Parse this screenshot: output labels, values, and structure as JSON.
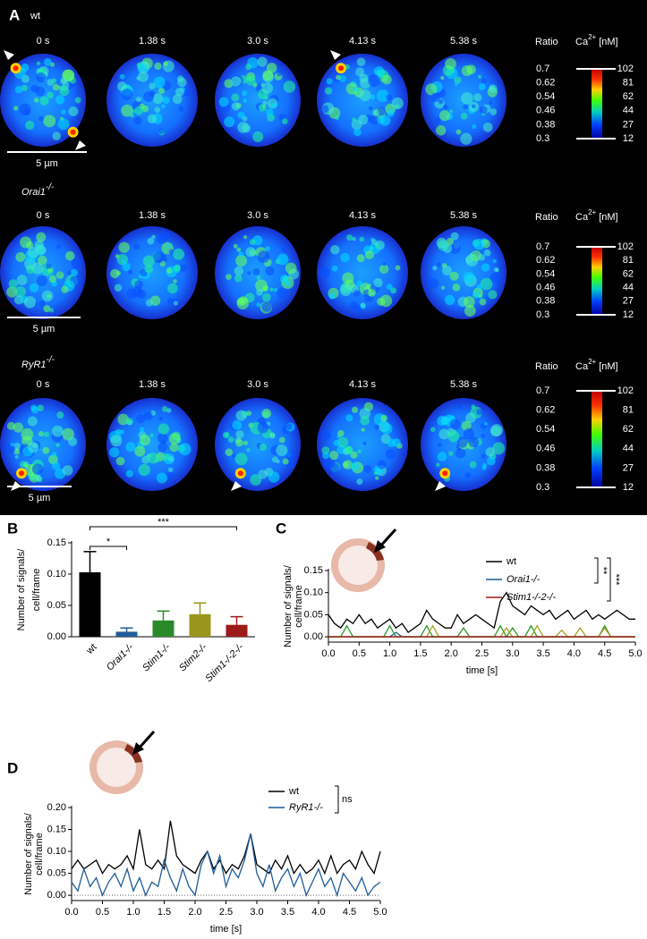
{
  "panel_a": {
    "label": "A",
    "rows": [
      {
        "genotype": "wt"
      },
      {
        "genotype": "Orai1",
        "superscript": "-/-"
      },
      {
        "genotype": "RyR1",
        "superscript": "-/-"
      }
    ],
    "times": [
      "0 s",
      "1.38 s",
      "3.0 s",
      "4.13 s",
      "5.38 s"
    ],
    "scale_bar": "5 µm",
    "colorbar": {
      "ratio_title": "Ratio",
      "ca_label": "Ca",
      "ca_sup": "2+",
      "ca_unit": "[nM]",
      "ratio_ticks": [
        0.7,
        0.62,
        0.54,
        0.46,
        0.38,
        0.3
      ],
      "ca_ticks": [
        102,
        81,
        62,
        44,
        27,
        12
      ]
    }
  },
  "chart_data": [
    {
      "type": "bar",
      "panel": "B",
      "ylabel": [
        "Number of signals/",
        "cell/frame"
      ],
      "categories": [
        "wt",
        "Orai1-/-",
        "Stim1-/-",
        "Stim2-/-",
        "Stim1-/-2-/-"
      ],
      "values": [
        0.103,
        0.008,
        0.026,
        0.036,
        0.019
      ],
      "errors": [
        0.033,
        0.006,
        0.015,
        0.018,
        0.013
      ],
      "colors": [
        "#000000",
        "#1f5c99",
        "#2a8a2a",
        "#9a961c",
        "#9c1a1a"
      ],
      "ylim": [
        0,
        0.15
      ],
      "yticks": [
        {
          "value": 0,
          "label": "0.00"
        },
        0.05,
        {
          "value": 0.1,
          "label": "0.10"
        },
        0.15
      ],
      "annotations": [
        "*",
        "***"
      ]
    },
    {
      "type": "line",
      "panel": "C",
      "ylabel": [
        "Number of signals/",
        "cell/frame"
      ],
      "xlabel": "time [s]",
      "x": [
        0,
        0.1,
        0.2,
        0.3,
        0.4,
        0.5,
        0.6,
        0.7,
        0.8,
        0.9,
        1,
        1.1,
        1.2,
        1.3,
        1.4,
        1.5,
        1.6,
        1.7,
        1.8,
        1.9,
        2,
        2.1,
        2.2,
        2.3,
        2.4,
        2.5,
        2.6,
        2.7,
        2.8,
        2.9,
        3,
        3.1,
        3.2,
        3.3,
        3.4,
        3.5,
        3.6,
        3.7,
        3.8,
        3.9,
        4,
        4.1,
        4.2,
        4.3,
        4.4,
        4.5,
        4.6,
        4.7,
        4.8,
        4.9,
        5
      ],
      "series": [
        {
          "name": "wt",
          "color": "#000000",
          "values": [
            0.05,
            0.03,
            0.02,
            0.04,
            0.03,
            0.05,
            0.03,
            0.04,
            0.02,
            0.03,
            0.04,
            0.02,
            0.03,
            0.01,
            0.02,
            0.03,
            0.06,
            0.04,
            0.03,
            0.02,
            0.02,
            0.05,
            0.03,
            0.04,
            0.05,
            0.04,
            0.03,
            0.02,
            0.08,
            0.1,
            0.07,
            0.06,
            0.05,
            0.07,
            0.06,
            0.05,
            0.06,
            0.04,
            0.05,
            0.06,
            0.04,
            0.05,
            0.06,
            0.04,
            0.05,
            0.04,
            0.05,
            0.06,
            0.05,
            0.04,
            0.04
          ]
        },
        {
          "name": "Orai1-/-",
          "color": "#1f5c99",
          "values": [
            0,
            0,
            0,
            0,
            0,
            0,
            0,
            0,
            0,
            0,
            0,
            0.01,
            0,
            0,
            0,
            0,
            0,
            0,
            0,
            0,
            0,
            0,
            0,
            0,
            0,
            0,
            0,
            0,
            0,
            0,
            0,
            0,
            0,
            0,
            0,
            0,
            0,
            0,
            0,
            0,
            0,
            0,
            0,
            0,
            0,
            0,
            0,
            0,
            0,
            0,
            0
          ]
        },
        {
          "color": "#2a9a2a",
          "values": [
            0,
            0,
            0,
            0.025,
            0,
            0,
            0,
            0,
            0,
            0,
            0.025,
            0,
            0,
            0,
            0,
            0,
            0.025,
            0,
            0,
            0,
            0,
            0,
            0.02,
            0,
            0,
            0,
            0,
            0,
            0.025,
            0,
            0.02,
            0,
            0,
            0.025,
            0,
            0,
            0,
            0,
            0,
            0,
            0,
            0,
            0,
            0,
            0,
            0.025,
            0,
            0,
            0,
            0,
            0
          ]
        },
        {
          "color": "#a8a020",
          "values": [
            0,
            0,
            0,
            0,
            0,
            0,
            0,
            0,
            0,
            0,
            0,
            0,
            0,
            0,
            0,
            0,
            0,
            0.025,
            0,
            0,
            0,
            0,
            0,
            0,
            0,
            0,
            0,
            0,
            0,
            0.02,
            0,
            0,
            0,
            0,
            0.025,
            0,
            0,
            0,
            0.015,
            0,
            0,
            0.02,
            0,
            0,
            0,
            0.02,
            0,
            0,
            0,
            0,
            0
          ]
        },
        {
          "name": "Stim1-/-2-/-",
          "color": "#9c1a1a",
          "values": [
            0,
            0,
            0,
            0,
            0,
            0,
            0,
            0,
            0,
            0,
            0,
            0,
            0,
            0,
            0,
            0,
            0,
            0,
            0,
            0,
            0,
            0,
            0,
            0,
            0,
            0,
            0,
            0,
            0,
            0,
            0,
            0,
            0,
            0,
            0,
            0,
            0,
            0,
            0,
            0,
            0,
            0,
            0,
            0,
            0,
            0,
            0,
            0,
            0,
            0,
            0
          ]
        }
      ],
      "xlim": [
        0,
        5
      ],
      "xticks": [
        {
          "value": 0,
          "label": "0.0"
        },
        0.5,
        {
          "value": 1,
          "label": "1.0"
        },
        1.5,
        {
          "value": 2,
          "label": "2.0"
        },
        2.5,
        {
          "value": 3,
          "label": "3.0"
        },
        3.5,
        {
          "value": 4,
          "label": "4.0"
        },
        4.5,
        {
          "value": 5,
          "label": "5.0"
        }
      ],
      "ylim": [
        -0.012,
        0.15
      ],
      "yticks": [
        {
          "value": 0,
          "label": "0.00"
        },
        0.05,
        {
          "value": 0.1,
          "label": "0.10"
        },
        0.15
      ],
      "zero_line": true,
      "annotations": [
        "**",
        "***"
      ]
    },
    {
      "type": "line",
      "panel": "D",
      "ylabel": [
        "Number of signals/",
        "cell/frame"
      ],
      "xlabel": "time [s]",
      "x": [
        0,
        0.1,
        0.2,
        0.3,
        0.4,
        0.5,
        0.6,
        0.7,
        0.8,
        0.9,
        1,
        1.1,
        1.2,
        1.3,
        1.4,
        1.5,
        1.6,
        1.7,
        1.8,
        1.9,
        2,
        2.1,
        2.2,
        2.3,
        2.4,
        2.5,
        2.6,
        2.7,
        2.8,
        2.9,
        3,
        3.1,
        3.2,
        3.3,
        3.4,
        3.5,
        3.6,
        3.7,
        3.8,
        3.9,
        4,
        4.1,
        4.2,
        4.3,
        4.4,
        4.5,
        4.6,
        4.7,
        4.8,
        4.9,
        5
      ],
      "series": [
        {
          "name": "wt",
          "color": "#000000",
          "values": [
            0.06,
            0.08,
            0.06,
            0.07,
            0.08,
            0.05,
            0.07,
            0.06,
            0.07,
            0.09,
            0.06,
            0.15,
            0.07,
            0.06,
            0.08,
            0.06,
            0.17,
            0.09,
            0.07,
            0.06,
            0.05,
            0.08,
            0.1,
            0.06,
            0.08,
            0.05,
            0.07,
            0.06,
            0.09,
            0.14,
            0.07,
            0.06,
            0.05,
            0.08,
            0.06,
            0.09,
            0.05,
            0.07,
            0.05,
            0.06,
            0.08,
            0.05,
            0.09,
            0.05,
            0.07,
            0.08,
            0.06,
            0.1,
            0.07,
            0.05,
            0.1
          ]
        },
        {
          "name": "RyR1-/-",
          "color": "#1f5c99",
          "values": [
            0.03,
            0.01,
            0.06,
            0.02,
            0.04,
            0,
            0.03,
            0.05,
            0.02,
            0.06,
            0.01,
            0.04,
            0,
            0.03,
            0.02,
            0.08,
            0.04,
            0.01,
            0.06,
            0.02,
            0,
            0.07,
            0.1,
            0.05,
            0.09,
            0.02,
            0.06,
            0.04,
            0.08,
            0.14,
            0.05,
            0.02,
            0.07,
            0.01,
            0.04,
            0.06,
            0.02,
            0.05,
            0,
            0.03,
            0.06,
            0.02,
            0.04,
            0,
            0.05,
            0.03,
            0.01,
            0.04,
            0,
            0.02,
            0.03
          ]
        }
      ],
      "xlim": [
        0,
        5
      ],
      "xticks": [
        {
          "value": 0,
          "label": "0.0"
        },
        0.5,
        {
          "value": 1,
          "label": "1.0"
        },
        1.5,
        {
          "value": 2,
          "label": "2.0"
        },
        2.5,
        {
          "value": 3,
          "label": "3.0"
        },
        3.5,
        {
          "value": 4,
          "label": "4.0"
        },
        4.5,
        {
          "value": 5,
          "label": "5.0"
        }
      ],
      "ylim": [
        -0.012,
        0.2
      ],
      "yticks": [
        {
          "value": 0,
          "label": "0.00"
        },
        0.05,
        {
          "value": 0.1,
          "label": "0.10"
        },
        0.15,
        {
          "value": 0.2,
          "label": "0.20"
        }
      ],
      "zero_line": true,
      "annotations": [
        "ns"
      ]
    }
  ]
}
